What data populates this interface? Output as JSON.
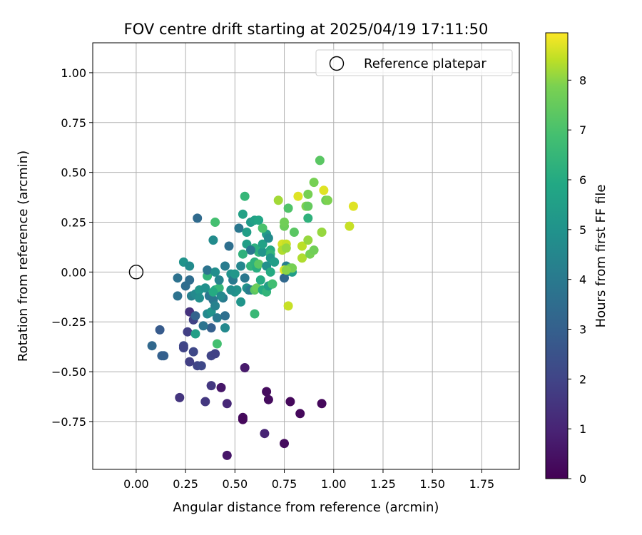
{
  "chart_data": {
    "type": "scatter",
    "title": "FOV centre drift starting at 2025/04/19 17:11:50",
    "xlabel": "Angular distance from reference (arcmin)",
    "ylabel": "Rotation from reference (arcmin)",
    "xlim": [
      -0.22,
      1.94
    ],
    "ylim": [
      -0.99,
      1.15
    ],
    "xticks": [
      "0.00",
      "0.25",
      "0.50",
      "0.75",
      "1.00",
      "1.25",
      "1.50",
      "1.75"
    ],
    "yticks": [
      "1.00",
      "0.75",
      "0.50",
      "0.25",
      "0.00",
      "−0.25",
      "−0.50",
      "−0.75"
    ],
    "grid": true,
    "legend": {
      "placement": "top-right",
      "entries": [
        {
          "label": "Reference platepar",
          "marker": "open-circle"
        }
      ]
    },
    "reference_point": {
      "x": 0.0,
      "y": 0.0
    },
    "colorbar": {
      "label": "Hours from first FF file",
      "colormap": "viridis",
      "range": [
        0,
        8.95
      ],
      "ticks": [
        "0",
        "1",
        "2",
        "3",
        "4",
        "5",
        "6",
        "7",
        "8"
      ]
    },
    "points": [
      [
        0.46,
        -0.92,
        0.6
      ],
      [
        0.75,
        -0.86,
        0.3
      ],
      [
        0.65,
        -0.81,
        1.0
      ],
      [
        0.54,
        -0.73,
        0.3
      ],
      [
        0.54,
        -0.74,
        0.2
      ],
      [
        0.83,
        -0.71,
        0.2
      ],
      [
        0.94,
        -0.66,
        0.2
      ],
      [
        0.78,
        -0.65,
        0.2
      ],
      [
        0.46,
        -0.66,
        1.1
      ],
      [
        0.67,
        -0.64,
        0.3
      ],
      [
        0.66,
        -0.6,
        0.3
      ],
      [
        0.35,
        -0.65,
        1.6
      ],
      [
        0.22,
        -0.63,
        1.5
      ],
      [
        0.43,
        -0.58,
        0.6
      ],
      [
        0.38,
        -0.57,
        1.6
      ],
      [
        0.55,
        -0.48,
        0.7
      ],
      [
        0.31,
        -0.47,
        2.0
      ],
      [
        0.33,
        -0.47,
        2.1
      ],
      [
        0.27,
        -0.45,
        1.8
      ],
      [
        0.13,
        -0.42,
        3.0
      ],
      [
        0.14,
        -0.42,
        3.0
      ],
      [
        0.29,
        -0.4,
        2.1
      ],
      [
        0.38,
        -0.42,
        2.0
      ],
      [
        0.4,
        -0.41,
        1.9
      ],
      [
        0.24,
        -0.37,
        2.1
      ],
      [
        0.24,
        -0.38,
        2.0
      ],
      [
        0.08,
        -0.37,
        3.3
      ],
      [
        0.12,
        -0.29,
        2.8
      ],
      [
        0.26,
        -0.3,
        1.8
      ],
      [
        0.29,
        -0.24,
        1.9
      ],
      [
        0.27,
        -0.2,
        1.4
      ],
      [
        0.3,
        -0.22,
        3.1
      ],
      [
        0.41,
        -0.36,
        6.9
      ],
      [
        0.3,
        -0.31,
        5.5
      ],
      [
        0.38,
        -0.28,
        3.0
      ],
      [
        0.36,
        -0.21,
        4.6
      ],
      [
        0.38,
        -0.2,
        5.0
      ],
      [
        0.41,
        -0.23,
        4.0
      ],
      [
        0.45,
        -0.22,
        3.6
      ],
      [
        0.45,
        -0.28,
        4.6
      ],
      [
        0.34,
        -0.27,
        3.8
      ],
      [
        0.21,
        -0.12,
        3.7
      ],
      [
        0.21,
        -0.03,
        3.7
      ],
      [
        0.25,
        -0.07,
        3.5
      ],
      [
        0.27,
        -0.04,
        3.5
      ],
      [
        0.28,
        -0.12,
        4.3
      ],
      [
        0.3,
        -0.11,
        4.6
      ],
      [
        0.32,
        -0.09,
        5.1
      ],
      [
        0.32,
        -0.13,
        4.8
      ],
      [
        0.35,
        -0.08,
        4.9
      ],
      [
        0.37,
        -0.12,
        3.9
      ],
      [
        0.39,
        -0.14,
        3.9
      ],
      [
        0.4,
        -0.09,
        5.8
      ],
      [
        0.41,
        -0.09,
        6.5
      ],
      [
        0.42,
        -0.08,
        6.5
      ],
      [
        0.39,
        -0.1,
        6.0
      ],
      [
        0.44,
        -0.13,
        4.0
      ],
      [
        0.4,
        -0.17,
        4.3
      ],
      [
        0.36,
        -0.02,
        6.4
      ],
      [
        0.36,
        0.01,
        3.8
      ],
      [
        0.4,
        0.0,
        4.8
      ],
      [
        0.42,
        -0.04,
        4.4
      ],
      [
        0.45,
        0.03,
        4.1
      ],
      [
        0.48,
        -0.01,
        5.0
      ],
      [
        0.49,
        -0.04,
        4.0
      ],
      [
        0.5,
        -0.1,
        5.0
      ],
      [
        0.53,
        -0.15,
        5.1
      ],
      [
        0.51,
        -0.09,
        5.0
      ],
      [
        0.47,
        0.13,
        3.6
      ],
      [
        0.52,
        0.22,
        3.9
      ],
      [
        0.53,
        0.03,
        4.5
      ],
      [
        0.5,
        -0.01,
        5.2
      ],
      [
        0.55,
        -0.03,
        3.9
      ],
      [
        0.56,
        -0.08,
        5.0
      ],
      [
        0.57,
        -0.09,
        4.5
      ],
      [
        0.58,
        -0.09,
        4.0
      ],
      [
        0.6,
        -0.21,
        6.6
      ],
      [
        0.6,
        -0.09,
        7.3
      ],
      [
        0.61,
        -0.08,
        7.6
      ],
      [
        0.63,
        -0.04,
        6.0
      ],
      [
        0.64,
        -0.09,
        6.0
      ],
      [
        0.66,
        -0.1,
        6.4
      ],
      [
        0.67,
        -0.07,
        5.5
      ],
      [
        0.69,
        -0.06,
        7.2
      ],
      [
        0.58,
        0.03,
        6.4
      ],
      [
        0.6,
        0.05,
        6.3
      ],
      [
        0.61,
        0.02,
        6.1
      ],
      [
        0.62,
        0.1,
        6.4
      ],
      [
        0.62,
        0.04,
        7.3
      ],
      [
        0.6,
        0.12,
        6.2
      ],
      [
        0.56,
        0.14,
        5.5
      ],
      [
        0.56,
        0.2,
        5.5
      ],
      [
        0.58,
        0.25,
        5.3
      ],
      [
        0.6,
        0.26,
        5.6
      ],
      [
        0.62,
        0.26,
        5.8
      ],
      [
        0.58,
        0.11,
        3.9
      ],
      [
        0.64,
        0.1,
        5.1
      ],
      [
        0.64,
        0.14,
        5.6
      ],
      [
        0.66,
        0.19,
        5.3
      ],
      [
        0.67,
        0.17,
        4.7
      ],
      [
        0.68,
        0.11,
        6.0
      ],
      [
        0.68,
        0.09,
        6.4
      ],
      [
        0.68,
        0.07,
        5.2
      ],
      [
        0.66,
        0.03,
        4.9
      ],
      [
        0.68,
        0.0,
        6.0
      ],
      [
        0.7,
        0.05,
        5.5
      ],
      [
        0.74,
        0.14,
        8.6
      ],
      [
        0.74,
        0.11,
        8.3
      ],
      [
        0.76,
        0.14,
        8.5
      ],
      [
        0.76,
        0.12,
        8.1
      ],
      [
        0.76,
        0.03,
        4.2
      ],
      [
        0.76,
        0.0,
        5.4
      ],
      [
        0.78,
        0.02,
        7.4
      ],
      [
        0.79,
        0.0,
        5.4
      ],
      [
        0.78,
        0.01,
        5.6
      ],
      [
        0.75,
        0.01,
        8.7
      ],
      [
        0.75,
        -0.03,
        3.3
      ],
      [
        0.77,
        -0.17,
        8.5
      ],
      [
        0.79,
        0.02,
        7.8
      ],
      [
        0.76,
        0.01,
        8.0
      ],
      [
        0.54,
        0.09,
        6.3
      ],
      [
        0.54,
        0.29,
        5.6
      ],
      [
        0.55,
        0.38,
        6.5
      ],
      [
        0.4,
        0.25,
        6.9
      ],
      [
        0.39,
        0.16,
        4.7
      ],
      [
        0.31,
        0.27,
        3.4
      ],
      [
        0.24,
        0.05,
        5.0
      ],
      [
        0.27,
        0.03,
        4.7
      ],
      [
        0.72,
        0.36,
        8.2
      ],
      [
        0.75,
        0.23,
        7.6
      ],
      [
        0.75,
        0.25,
        7.7
      ],
      [
        0.77,
        0.32,
        7.1
      ],
      [
        0.8,
        0.2,
        7.3
      ],
      [
        0.82,
        0.38,
        8.7
      ],
      [
        0.84,
        0.07,
        8.3
      ],
      [
        0.84,
        0.13,
        8.4
      ],
      [
        0.86,
        0.33,
        7.9
      ],
      [
        0.87,
        0.39,
        7.8
      ],
      [
        0.87,
        0.33,
        7.5
      ],
      [
        0.87,
        0.16,
        8.1
      ],
      [
        0.87,
        0.27,
        6.3
      ],
      [
        0.88,
        0.09,
        7.8
      ],
      [
        0.9,
        0.11,
        7.7
      ],
      [
        0.9,
        0.45,
        7.8
      ],
      [
        0.93,
        0.56,
        7.3
      ],
      [
        0.94,
        0.2,
        8.1
      ],
      [
        0.95,
        0.41,
        8.7
      ],
      [
        0.96,
        0.36,
        7.6
      ],
      [
        0.97,
        0.36,
        7.9
      ],
      [
        1.08,
        0.23,
        8.5
      ],
      [
        1.1,
        0.33,
        8.7
      ],
      [
        0.69,
        -0.06,
        6.8
      ],
      [
        0.64,
        0.22,
        7.0
      ],
      [
        0.48,
        -0.09,
        4.8
      ],
      [
        0.43,
        -0.12,
        4.6
      ]
    ]
  }
}
